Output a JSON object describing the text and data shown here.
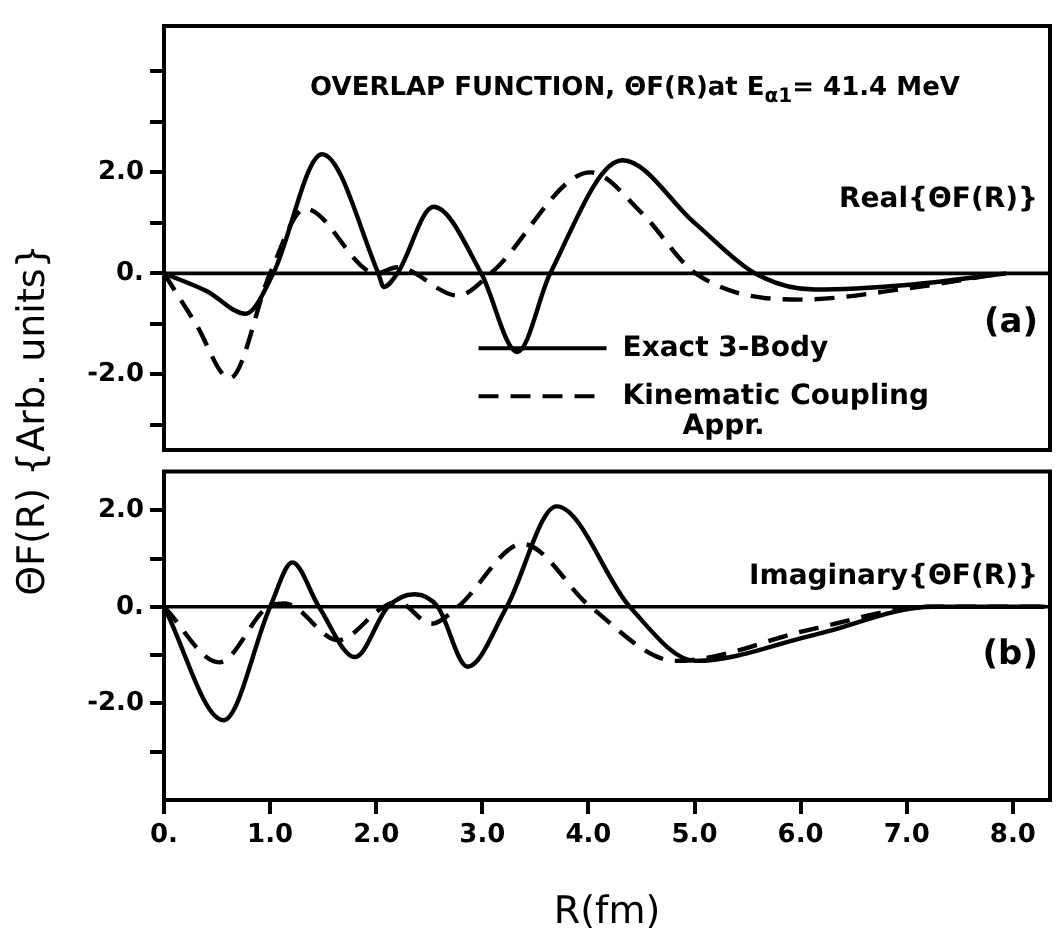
{
  "chart_data": [
    {
      "type": "line",
      "title": "OVERLAP FUNCTION, ΘF(R)at E$_{α1}$= 41.4 MeV",
      "ylabel": "ΘF(R) {Arb. units}",
      "annotations": [
        "Real{ΘF(R)}",
        "(a)"
      ],
      "xlim": [
        0,
        8.35
      ],
      "xticks": [
        {
          "value": 0,
          "label": null
        },
        {
          "value": 1,
          "label": null
        },
        {
          "value": 2,
          "label": null
        },
        {
          "value": 3,
          "label": null
        },
        {
          "value": 4,
          "label": null
        },
        {
          "value": 5,
          "label": null
        },
        {
          "value": 6,
          "label": null
        },
        {
          "value": 7,
          "label": null
        },
        {
          "value": 8,
          "label": null
        }
      ],
      "ylim": [
        -3.5,
        4.9
      ],
      "yticks": [
        {
          "value": -3,
          "label": null
        },
        {
          "value": -2,
          "label": "-2.0"
        },
        {
          "value": -1,
          "label": null
        },
        {
          "value": 0,
          "label": "0."
        },
        {
          "value": 1,
          "label": null
        },
        {
          "value": 2,
          "label": "2.0"
        },
        {
          "value": 3,
          "label": null
        },
        {
          "value": 4,
          "label": null
        }
      ],
      "tick_labels": "y",
      "legend": "bottom",
      "ref_lines": [
        {
          "axis": "y",
          "value": 0
        }
      ],
      "series": [
        {
          "name": "Exact 3-Body",
          "color": "#000000",
          "line_style": "solid",
          "x": [
            0,
            0.4,
            0.77,
            1.03,
            1.49,
            2.02,
            2.07,
            2.2,
            2.54,
            2.99,
            3.33,
            3.64,
            4.32,
            5.0,
            5.57,
            6.13,
            7.0,
            7.94
          ],
          "values": [
            0,
            -0.35,
            -0.8,
            0,
            2.36,
            0,
            -0.27,
            0,
            1.32,
            0,
            -1.56,
            0,
            2.24,
            1.0,
            0,
            -0.32,
            -0.23,
            0
          ]
        },
        {
          "name": "Kinematic Coupling Appr.",
          "color": "#000000",
          "line_style": "dashed",
          "x": [
            0,
            0.3,
            0.62,
            1.0,
            1.33,
            2.0,
            2.2,
            2.77,
            3.08,
            4.02,
            4.5,
            5.01,
            6.0,
            7.0,
            7.9
          ],
          "values": [
            0,
            -1.0,
            -2.08,
            0,
            1.28,
            0,
            0.12,
            -0.44,
            0,
            2.0,
            1.2,
            0,
            -0.52,
            -0.3,
            0
          ]
        }
      ]
    },
    {
      "type": "line",
      "xlabel": "R(fm)",
      "annotations": [
        "Imaginary{ΘF(R)}",
        "(b)"
      ],
      "xlim": [
        0,
        8.35
      ],
      "xticks": [
        {
          "value": 0,
          "label": "0."
        },
        {
          "value": 1,
          "label": "1.0"
        },
        {
          "value": 2,
          "label": "2.0"
        },
        {
          "value": 3,
          "label": "3.0"
        },
        {
          "value": 4,
          "label": "4.0"
        },
        {
          "value": 5,
          "label": "5.0"
        },
        {
          "value": 6,
          "label": "6.0"
        },
        {
          "value": 7,
          "label": "7.0"
        },
        {
          "value": 8,
          "label": "8.0"
        }
      ],
      "ylim": [
        -4,
        2.8
      ],
      "yticks": [
        {
          "value": -3,
          "label": null
        },
        {
          "value": -2,
          "label": "-2.0"
        },
        {
          "value": -1,
          "label": null
        },
        {
          "value": 0,
          "label": "0."
        },
        {
          "value": 1,
          "label": null
        },
        {
          "value": 2,
          "label": "2.0"
        }
      ],
      "ref_lines": [
        {
          "axis": "y",
          "value": 0
        }
      ],
      "series": [
        {
          "color": "#000000",
          "line_style": "solid",
          "x": [
            0,
            0.56,
            1.0,
            1.21,
            1.46,
            1.8,
            2.11,
            2.36,
            2.58,
            2.86,
            3.23,
            3.7,
            4.39,
            5.01,
            6.13,
            7.25,
            8.3
          ],
          "values": [
            0,
            -2.35,
            0,
            0.92,
            0,
            -1.04,
            0,
            0.26,
            0,
            -1.24,
            0,
            2.08,
            0,
            -1.12,
            -0.58,
            0,
            0
          ]
        },
        {
          "color": "#000000",
          "line_style": "dashed",
          "x": [
            0,
            0.52,
            0.98,
            1.14,
            1.64,
            2.07,
            2.2,
            2.52,
            2.77,
            3.38,
            4.02,
            4.82,
            6.13,
            7.2,
            8.3
          ],
          "values": [
            0,
            -1.15,
            0,
            0.07,
            -0.69,
            0,
            0.1,
            -0.35,
            0,
            1.3,
            0,
            -1.12,
            -0.45,
            0,
            0
          ]
        }
      ]
    }
  ]
}
